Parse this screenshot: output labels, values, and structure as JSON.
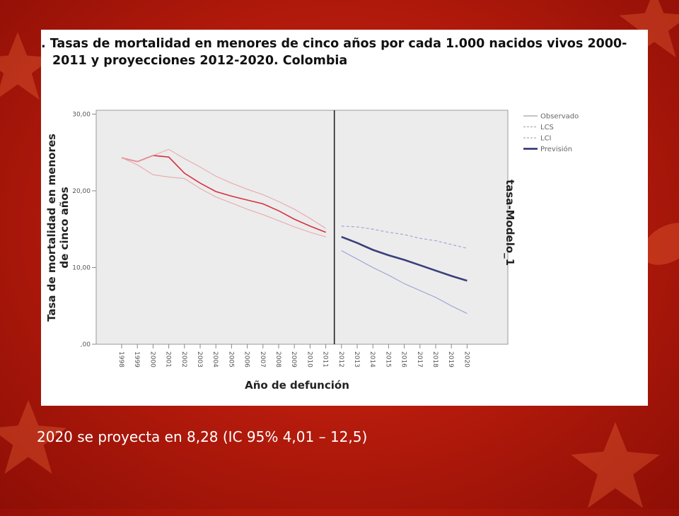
{
  "slide": {
    "caption": "2020 se proyecta en 8,28 (IC 95% 4,01 – 12,5)"
  },
  "chart_data": {
    "type": "line",
    "title_line1": ". Tasas de mortalidad en menores de cinco años por cada 1.000 nacidos vivos 2000-",
    "title_line2": "2011 y proyecciones 2012-2020. Colombia",
    "xlabel": "Año de defunción",
    "ylabel_line1": "Tasa de mortalidad en menores",
    "ylabel_line2": "de cinco años",
    "right_label": "tasa-Modelo_1",
    "x": [
      "1998",
      "1999",
      "2000",
      "2001",
      "2002",
      "2003",
      "2004",
      "2005",
      "2006",
      "2007",
      "2008",
      "2009",
      "2010",
      "2011",
      "2012",
      "2013",
      "2014",
      "2015",
      "2016",
      "2017",
      "2018",
      "2019",
      "2020"
    ],
    "y_ticks": [
      "30,00",
      "20,00",
      "10,00",
      ",00"
    ],
    "ylim": [
      0,
      30.5
    ],
    "forecast_start": "2012",
    "grid": false,
    "legend_position": "top-right",
    "series": [
      {
        "name": "Observado",
        "color": "#d93040",
        "values": [
          24.3,
          23.8,
          24.6,
          24.4,
          22.3,
          21.0,
          19.9,
          19.3,
          18.8,
          18.3,
          17.4,
          16.3,
          15.4,
          14.6,
          null,
          null,
          null,
          null,
          null,
          null,
          null,
          null,
          null
        ]
      },
      {
        "name": "LCS",
        "color": "#e8a8ad",
        "values": [
          24.3,
          23.8,
          24.6,
          25.4,
          24.2,
          23.1,
          21.9,
          21.0,
          20.2,
          19.5,
          18.6,
          17.6,
          16.4,
          15.1,
          null,
          null,
          null,
          null,
          null,
          null,
          null,
          null,
          null
        ]
      },
      {
        "name": "LCI",
        "color": "#e8a8ad",
        "values": [
          24.3,
          23.4,
          22.1,
          21.8,
          21.6,
          20.3,
          19.2,
          18.4,
          17.6,
          16.9,
          16.1,
          15.3,
          14.6,
          14.0,
          null,
          null,
          null,
          null,
          null,
          null,
          null,
          null,
          null
        ]
      },
      {
        "name": "LCS",
        "color": "#9aa0d8",
        "dashed": true,
        "values": [
          null,
          null,
          null,
          null,
          null,
          null,
          null,
          null,
          null,
          null,
          null,
          null,
          null,
          null,
          15.4,
          15.3,
          15.0,
          14.6,
          14.3,
          13.8,
          13.5,
          13.0,
          12.5
        ]
      },
      {
        "name": "LCI",
        "color": "#9aa0d8",
        "values": [
          null,
          null,
          null,
          null,
          null,
          null,
          null,
          null,
          null,
          null,
          null,
          null,
          null,
          null,
          12.2,
          11.1,
          10.0,
          9.0,
          7.9,
          7.0,
          6.1,
          5.0,
          4.01
        ]
      },
      {
        "name": "Previsión",
        "color": "#3a3f7a",
        "values": [
          null,
          null,
          null,
          null,
          null,
          null,
          null,
          null,
          null,
          null,
          null,
          null,
          null,
          null,
          14.0,
          13.2,
          12.3,
          11.6,
          11.0,
          10.3,
          9.6,
          8.9,
          8.28
        ]
      }
    ],
    "legend": [
      {
        "label": "Observado",
        "color": "#888888"
      },
      {
        "label": "LCS",
        "color": "#9a9ea8",
        "dashed": true
      },
      {
        "label": "LCI",
        "color": "#9a9ea8",
        "dashed": true
      },
      {
        "label": "Previsión",
        "color": "#2a2f6a"
      }
    ]
  }
}
